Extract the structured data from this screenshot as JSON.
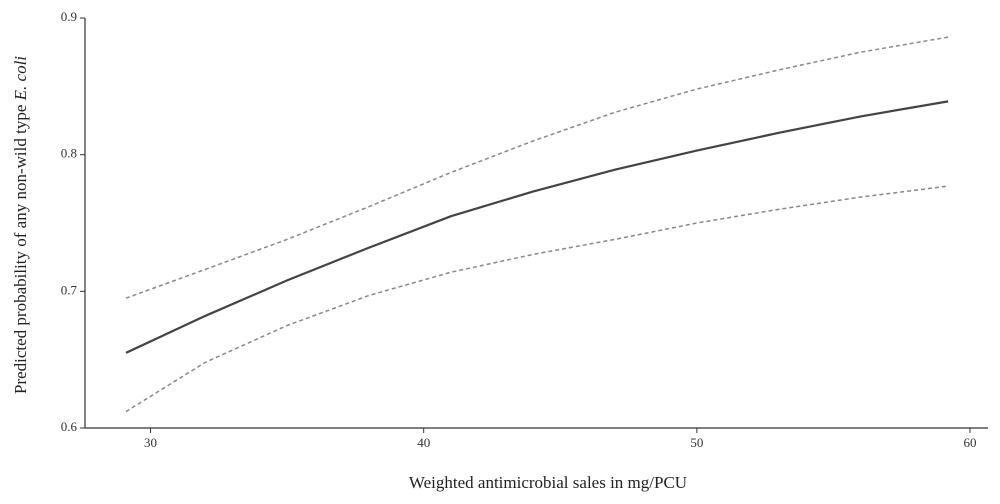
{
  "chart_data": {
    "type": "line",
    "xlabel": "Weighted antimicrobial sales in mg/PCU",
    "ylabel": {
      "text": "Predicted probability of any non-wild type",
      "italic": "E. coli"
    },
    "x": [
      29.1,
      32,
      35,
      38,
      41,
      44,
      47,
      50,
      53,
      56,
      59.2
    ],
    "series": [
      {
        "color": "#444444",
        "dash": false,
        "values": [
          0.655,
          0.682,
          0.708,
          0.732,
          0.755,
          0.773,
          0.789,
          0.803,
          0.816,
          0.828,
          0.839
        ]
      },
      {
        "color": "#888888",
        "dash": true,
        "values": [
          0.695,
          0.716,
          0.738,
          0.762,
          0.787,
          0.81,
          0.831,
          0.848,
          0.862,
          0.875,
          0.886
        ]
      },
      {
        "color": "#888888",
        "dash": true,
        "values": [
          0.612,
          0.648,
          0.675,
          0.697,
          0.714,
          0.727,
          0.738,
          0.75,
          0.76,
          0.769,
          0.777
        ]
      }
    ],
    "xlim": [
      27.6,
      60.66
    ],
    "xticks": [
      30,
      40,
      50,
      60
    ],
    "ylim": [
      0.6,
      0.9
    ],
    "yticks": [
      0.6,
      0.7,
      0.8,
      0.9
    ]
  }
}
